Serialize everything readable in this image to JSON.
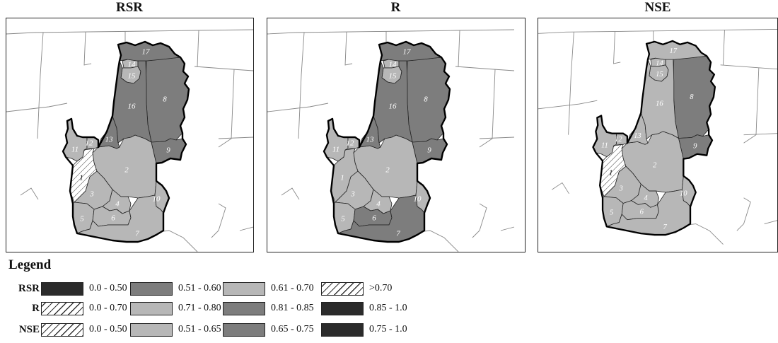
{
  "panels": [
    {
      "title": "RSR",
      "fills": {
        "1": "hatch",
        "2": "light",
        "3": "light",
        "4": "light",
        "5": "light",
        "6": "light",
        "7": "light",
        "8": "medium",
        "9": "medium",
        "10": "light",
        "11": "light",
        "12": "light",
        "13": "medium",
        "14": "light",
        "15": "light",
        "16": "medium",
        "17": "medium"
      }
    },
    {
      "title": "R",
      "fills": {
        "1": "light",
        "2": "light",
        "3": "light",
        "4": "light",
        "5": "light",
        "6": "medium",
        "7": "medium",
        "8": "medium",
        "9": "medium",
        "10": "light",
        "11": "light",
        "12": "light",
        "13": "medium",
        "14": "light",
        "15": "light",
        "16": "medium",
        "17": "medium"
      }
    },
    {
      "title": "NSE",
      "fills": {
        "1": "hatch",
        "2": "light",
        "3": "light",
        "4": "light",
        "5": "light",
        "6": "light",
        "7": "light",
        "8": "medium",
        "9": "medium",
        "10": "light",
        "11": "light",
        "12": "light",
        "13": "light",
        "14": "light",
        "15": "light",
        "16": "light",
        "17": "light"
      }
    }
  ],
  "region_labels": [
    "1",
    "2",
    "3",
    "4",
    "5",
    "6",
    "7",
    "8",
    "9",
    "10",
    "11",
    "12",
    "13",
    "14",
    "15",
    "16",
    "17"
  ],
  "colors": {
    "dark": "#2b2b2b",
    "medium": "#7d7d7d",
    "light": "#b7b7b7",
    "hatch": "#ffffff"
  },
  "legend": {
    "title": "Legend",
    "rows": [
      {
        "label": "RSR",
        "items": [
          {
            "fill": "dark",
            "text": "0.0 - 0.50"
          },
          {
            "fill": "medium",
            "text": "0.51 - 0.60"
          },
          {
            "fill": "light",
            "text": "0.61 - 0.70"
          },
          {
            "fill": "hatch",
            "text": ">0.70"
          }
        ]
      },
      {
        "label": "R",
        "items": [
          {
            "fill": "hatch",
            "text": "0.0 - 0.70"
          },
          {
            "fill": "light",
            "text": "0.71 - 0.80"
          },
          {
            "fill": "medium",
            "text": "0.81 - 0.85"
          },
          {
            "fill": "dark",
            "text": "0.85 - 1.0"
          }
        ]
      },
      {
        "label": "NSE",
        "items": [
          {
            "fill": "hatch",
            "text": "0.0 - 0.50"
          },
          {
            "fill": "light",
            "text": "0.51 - 0.65"
          },
          {
            "fill": "medium",
            "text": "0.65 - 0.75"
          },
          {
            "fill": "dark",
            "text": "0.75 - 1.0"
          }
        ]
      }
    ]
  }
}
